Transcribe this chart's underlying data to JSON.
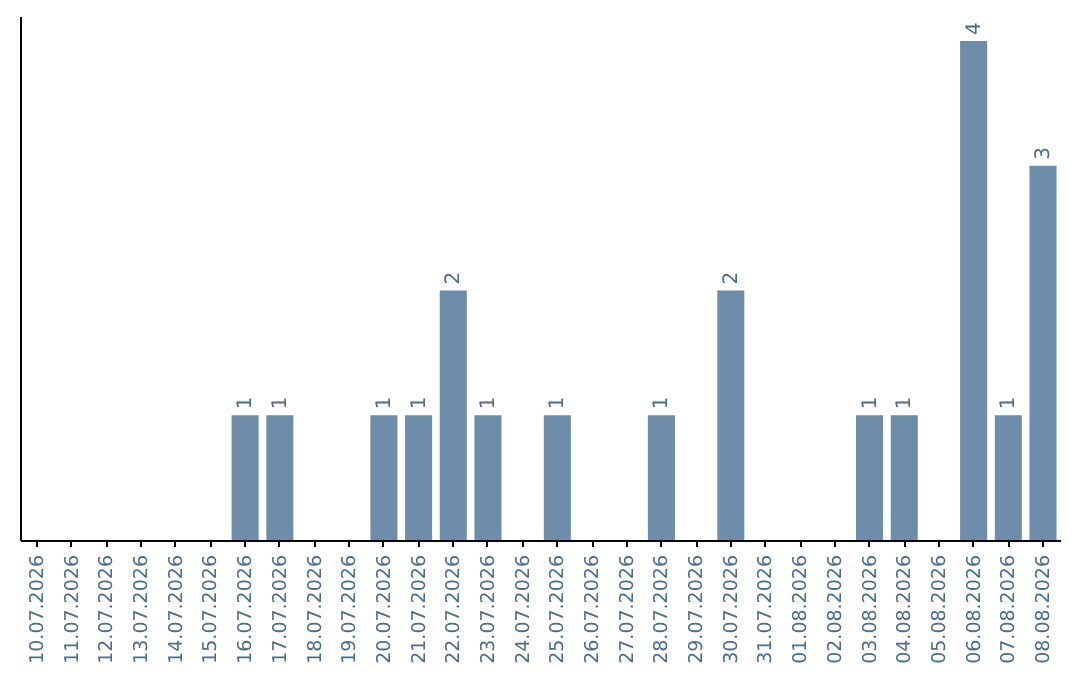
{
  "chart_data": {
    "type": "bar",
    "categories": [
      "10.07.2026",
      "11.07.2026",
      "12.07.2026",
      "13.07.2026",
      "14.07.2026",
      "15.07.2026",
      "16.07.2026",
      "17.07.2026",
      "18.07.2026",
      "19.07.2026",
      "20.07.2026",
      "21.07.2026",
      "22.07.2026",
      "23.07.2026",
      "24.07.2026",
      "25.07.2026",
      "26.07.2026",
      "27.07.2026",
      "28.07.2026",
      "29.07.2026",
      "30.07.2026",
      "31.07.2026",
      "01.08.2026",
      "02.08.2026",
      "03.08.2026",
      "04.08.2026",
      "05.08.2026",
      "06.08.2026",
      "07.08.2026",
      "08.08.2026"
    ],
    "values": [
      0,
      0,
      0,
      0,
      0,
      0,
      1,
      1,
      0,
      0,
      1,
      1,
      2,
      1,
      0,
      1,
      0,
      0,
      1,
      0,
      2,
      0,
      0,
      0,
      1,
      1,
      0,
      4,
      1,
      3
    ],
    "value_labels": [
      null,
      null,
      null,
      null,
      null,
      null,
      "1",
      "1",
      null,
      null,
      "1",
      "1",
      "2",
      "1",
      null,
      "1",
      null,
      null,
      "1",
      null,
      "2",
      null,
      null,
      null,
      "1",
      "1",
      null,
      "4",
      "1",
      "3"
    ],
    "color": "#6d8dab",
    "ylim": [
      0,
      4.2
    ],
    "tick_labels": "x",
    "grid": false
  }
}
